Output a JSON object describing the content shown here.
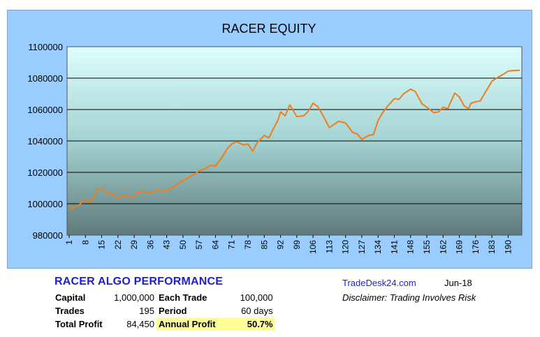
{
  "chart_data": {
    "type": "line",
    "title": "RACER EQUITY",
    "ylim": [
      980000,
      1100000
    ],
    "yticks": [
      980000,
      1000000,
      1020000,
      1040000,
      1060000,
      1080000,
      1100000
    ],
    "yticklabels": [
      "980000",
      "1000000",
      "1020000",
      "1040000",
      "1060000",
      "1080000",
      "1100000"
    ],
    "xlim": [
      1,
      195
    ],
    "xticks": [
      1,
      8,
      15,
      22,
      29,
      36,
      43,
      50,
      57,
      64,
      71,
      78,
      85,
      92,
      99,
      106,
      113,
      120,
      127,
      134,
      141,
      148,
      155,
      162,
      169,
      176,
      183,
      190
    ],
    "grid": true,
    "line_color": "#f07d1a",
    "series": [
      {
        "x": [
          1,
          2,
          4,
          6,
          7,
          8,
          10,
          12,
          13,
          15,
          17,
          20,
          22,
          24,
          26,
          29,
          31,
          33,
          36,
          38,
          41,
          43,
          45,
          48,
          50,
          52,
          54,
          57,
          59,
          62,
          64,
          65,
          67,
          69,
          71,
          73,
          76,
          78,
          80,
          82,
          84,
          85,
          87,
          89,
          91,
          92,
          94,
          96,
          98,
          99,
          102,
          104,
          106,
          108,
          110,
          113,
          115,
          117,
          120,
          123,
          125,
          127,
          130,
          132,
          134,
          136,
          138,
          141,
          143,
          145,
          148,
          150,
          153,
          155,
          158,
          160,
          162,
          164,
          167,
          169,
          171,
          173,
          174,
          176,
          178,
          180,
          183,
          185,
          188,
          190,
          192,
          195
        ],
        "y": [
          999000,
          997000,
          998500,
          1000000,
          1002000,
          1002500,
          1001000,
          1005000,
          1009000,
          1009500,
          1007000,
          1006000,
          1003500,
          1005500,
          1004500,
          1004000,
          1007500,
          1008000,
          1006500,
          1008500,
          1008000,
          1008500,
          1010000,
          1013000,
          1014500,
          1016500,
          1018000,
          1021000,
          1022000,
          1024500,
          1024000,
          1026000,
          1030000,
          1035000,
          1038000,
          1039500,
          1037500,
          1038000,
          1033500,
          1039000,
          1042000,
          1043500,
          1042000,
          1048000,
          1053500,
          1058500,
          1056000,
          1063000,
          1058000,
          1055500,
          1056000,
          1059000,
          1064000,
          1062000,
          1057000,
          1048500,
          1050500,
          1052500,
          1051500,
          1045500,
          1044500,
          1041000,
          1043500,
          1044000,
          1053000,
          1058000,
          1062000,
          1067000,
          1066500,
          1070000,
          1073000,
          1071500,
          1063500,
          1061500,
          1058000,
          1058500,
          1061500,
          1060500,
          1070500,
          1068000,
          1062500,
          1060500,
          1064000,
          1065000,
          1065500,
          1070500,
          1078000,
          1080000,
          1082500,
          1084500,
          1084800,
          1085000
        ]
      }
    ]
  },
  "performance": {
    "title": "RACER  ALGO PERFORMANCE",
    "capital_label": "Capital",
    "capital_value": "1,000,000",
    "each_trade_label": "Each Trade",
    "each_trade_value": "100,000",
    "trades_label": "Trades",
    "trades_value": "195",
    "period_label": "Period",
    "period_value": "60 days",
    "total_profit_label": "Total Profit",
    "total_profit_value": "84,450",
    "annual_profit_label": "Annual Profit",
    "annual_profit_value": "50.7%"
  },
  "footer": {
    "site": "TradeDesk24.com",
    "date": "Jun-18",
    "disclaimer": "Disclaimer: Trading Involves Risk"
  }
}
